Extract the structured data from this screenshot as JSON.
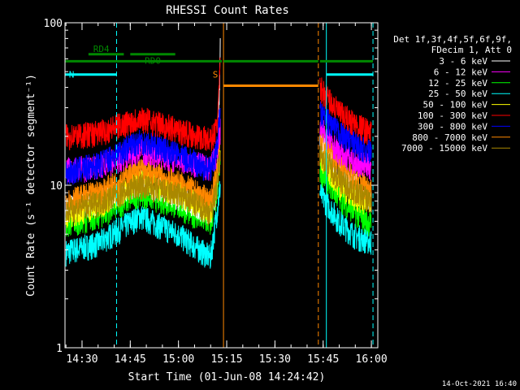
{
  "chart_data": {
    "type": "line",
    "title": "RHESSI Count Rates",
    "xlabel": "Start Time (01-Jun-08 14:24:42)",
    "ylabel": "Count Rate (s⁻¹ detector segment⁻¹)",
    "yscale": "log",
    "ylim": [
      1,
      100
    ],
    "xlim": [
      "14:24:42",
      "16:02:00"
    ],
    "y_ticks": [
      "1",
      "10",
      "100"
    ],
    "x_ticks": [
      "14:30",
      "14:45",
      "15:00",
      "15:15",
      "15:30",
      "15:45",
      "16:00"
    ],
    "footer_date": "14-Oct-2021 16:40",
    "legend": {
      "placement": "top-right",
      "header": [
        "Det 1f,3f,4f,5f,6f,9f,",
        "FDecim 1, Att 0"
      ]
    },
    "gaps": [
      {
        "from": "15:13",
        "to": "15:44"
      }
    ],
    "series": [
      {
        "name": "3 - 6 keV",
        "color": "#ffffff",
        "values": [
          [
            "14:25",
            7.2
          ],
          [
            "14:35",
            8.0
          ],
          [
            "14:48",
            10.5
          ],
          [
            "15:00",
            8.6
          ],
          [
            "15:10",
            6.8
          ],
          [
            "15:12",
            10
          ],
          [
            "15:13",
            70
          ],
          [
            "15:44",
            19
          ],
          [
            "15:50",
            12
          ],
          [
            "15:55",
            10
          ],
          [
            "16:00",
            8.3
          ]
        ]
      },
      {
        "name": "6 - 12 keV",
        "color": "#ff00ff",
        "values": [
          [
            "14:25",
            12.5
          ],
          [
            "14:35",
            13
          ],
          [
            "14:48",
            16.5
          ],
          [
            "15:00",
            14.5
          ],
          [
            "15:10",
            13
          ],
          [
            "15:12",
            16
          ],
          [
            "15:13",
            22
          ],
          [
            "15:44",
            23
          ],
          [
            "15:50",
            16
          ],
          [
            "15:55",
            14
          ],
          [
            "16:00",
            13
          ]
        ]
      },
      {
        "name": "12 - 25 keV",
        "color": "#00ff00",
        "values": [
          [
            "14:25",
            5.8
          ],
          [
            "14:35",
            6.5
          ],
          [
            "14:48",
            9.0
          ],
          [
            "15:00",
            7.5
          ],
          [
            "15:10",
            5.8
          ],
          [
            "15:12",
            9
          ],
          [
            "15:13",
            14
          ],
          [
            "15:44",
            12.5
          ],
          [
            "15:50",
            8.5
          ],
          [
            "15:55",
            6.8
          ],
          [
            "16:00",
            5.8
          ]
        ]
      },
      {
        "name": "25 - 50 keV",
        "color": "#00ffff",
        "values": [
          [
            "14:25",
            3.9
          ],
          [
            "14:35",
            4.4
          ],
          [
            "14:48",
            6.5
          ],
          [
            "15:00",
            5.0
          ],
          [
            "15:10",
            3.6
          ],
          [
            "15:12",
            7
          ],
          [
            "15:13",
            10
          ],
          [
            "15:44",
            9
          ],
          [
            "15:50",
            6.0
          ],
          [
            "15:55",
            4.9
          ],
          [
            "16:00",
            4.5
          ]
        ]
      },
      {
        "name": "50 - 100 keV",
        "color": "#ffff00",
        "values": [
          [
            "14:25",
            6.6
          ],
          [
            "14:35",
            7.5
          ],
          [
            "14:48",
            11
          ],
          [
            "15:00",
            9.0
          ],
          [
            "15:10",
            7.0
          ],
          [
            "15:12",
            11
          ],
          [
            "15:13",
            16
          ],
          [
            "15:44",
            15
          ],
          [
            "15:50",
            10
          ],
          [
            "15:55",
            8.5
          ],
          [
            "16:00",
            7.8
          ]
        ]
      },
      {
        "name": "100 - 300 keV",
        "color": "#ff0000",
        "values": [
          [
            "14:25",
            20
          ],
          [
            "14:35",
            21
          ],
          [
            "14:48",
            26
          ],
          [
            "15:00",
            22
          ],
          [
            "15:10",
            19
          ],
          [
            "15:12",
            23
          ],
          [
            "15:13",
            55
          ],
          [
            "15:44",
            40
          ],
          [
            "15:50",
            28
          ],
          [
            "15:55",
            24
          ],
          [
            "16:00",
            21
          ]
        ]
      },
      {
        "name": "300 - 800 keV",
        "color": "#0000ff",
        "values": [
          [
            "14:25",
            12
          ],
          [
            "14:35",
            13.5
          ],
          [
            "14:48",
            19
          ],
          [
            "15:00",
            15.5
          ],
          [
            "15:10",
            12.5
          ],
          [
            "15:12",
            17
          ],
          [
            "15:13",
            30
          ],
          [
            "15:44",
            28
          ],
          [
            "15:50",
            21
          ],
          [
            "15:55",
            18
          ],
          [
            "16:00",
            16
          ]
        ]
      },
      {
        "name": "800 - 7000 keV",
        "color": "#ff8800",
        "values": [
          [
            "14:25",
            8.0
          ],
          [
            "14:35",
            9.0
          ],
          [
            "14:48",
            12.5
          ],
          [
            "15:00",
            10.5
          ],
          [
            "15:10",
            8.0
          ],
          [
            "15:12",
            12
          ],
          [
            "15:13",
            22
          ],
          [
            "15:44",
            20
          ],
          [
            "15:50",
            13.5
          ],
          [
            "15:55",
            11
          ],
          [
            "16:00",
            9.5
          ]
        ]
      },
      {
        "name": "7000 - 15000 keV",
        "color": "#aa8800",
        "values": [
          [
            "14:25",
            7.0
          ],
          [
            "14:35",
            7.8
          ],
          [
            "14:48",
            10
          ],
          [
            "15:00",
            8.8
          ],
          [
            "15:10",
            6.8
          ],
          [
            "15:12",
            10
          ],
          [
            "15:13",
            16
          ],
          [
            "15:44",
            16
          ],
          [
            "15:50",
            11
          ],
          [
            "15:55",
            9.2
          ],
          [
            "16:00",
            8.0
          ]
        ]
      }
    ],
    "markers": [
      {
        "label": "N",
        "color": "#00ffff",
        "style": "solid",
        "at": "14:24:42"
      },
      {
        "label": "",
        "color": "#00ffff",
        "style": "dashed",
        "at": "14:40:45"
      },
      {
        "label": "",
        "color": "#00ffff",
        "style": "solid",
        "at": "15:46:00"
      },
      {
        "label": "",
        "color": "#00ffff",
        "style": "dashed",
        "at": "16:00:30"
      },
      {
        "label": "S",
        "color": "#ff8800",
        "style": "solid",
        "at": "15:14:00"
      },
      {
        "label": "",
        "color": "#ff8800",
        "style": "dashed",
        "at": "15:43:30"
      }
    ],
    "intervals": [
      {
        "color": "#00ffff",
        "level": 48,
        "from": "14:24:42",
        "to": "14:40:45"
      },
      {
        "color": "#00ffff",
        "level": 48,
        "from": "15:46:00",
        "to": "16:00:30"
      },
      {
        "color": "#ff8800",
        "level": 41,
        "from": "15:14:00",
        "to": "15:43:30"
      },
      {
        "color": "#008800",
        "level": 58,
        "from": "14:24:42",
        "to": "15:13:30"
      },
      {
        "color": "#008800",
        "level": 58,
        "from": "15:14:00",
        "to": "15:43:30"
      },
      {
        "color": "#008800",
        "level": 58,
        "from": "15:44:00",
        "to": "16:00:30"
      },
      {
        "color": "#008800",
        "level": 64,
        "from": "14:32:00",
        "to": "14:43:00"
      },
      {
        "color": "#008800",
        "level": 64,
        "from": "14:45:00",
        "to": "14:59:00"
      }
    ],
    "interval_labels": [
      {
        "text": "RD0",
        "color": "#008800",
        "at": "14:52:00",
        "level": 56
      },
      {
        "text": "RD4",
        "color": "#008800",
        "at": "14:36:00",
        "level": 66
      }
    ]
  }
}
